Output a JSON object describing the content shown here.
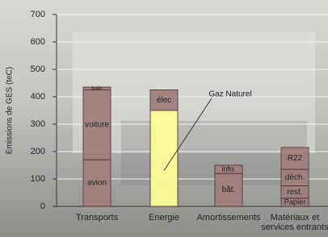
{
  "chart_data": {
    "type": "stacked_bar",
    "y_label": "Emissions de GES (teC)",
    "categories": [
      "Transports",
      "Energie",
      "Amortissements",
      "Matériaux et services entrants"
    ],
    "series": [
      {
        "name": "avion",
        "color": "#a07e7c",
        "values": [
          170,
          null,
          null,
          null
        ]
      },
      {
        "name": "voiture",
        "color": "#a07e7c",
        "values": [
          255,
          null,
          null,
          null
        ]
      },
      {
        "name": "train",
        "color": "#a07e7c",
        "values": [
          10,
          null,
          null,
          null
        ]
      },
      {
        "name": "Gaz Naturel",
        "color": "#ffff99",
        "values": [
          null,
          350,
          null,
          null
        ]
      },
      {
        "name": "élec",
        "color": "#a07e7c",
        "values": [
          null,
          75,
          null,
          null
        ]
      },
      {
        "name": "bât.",
        "color": "#a07e7c",
        "values": [
          null,
          null,
          120,
          null
        ]
      },
      {
        "name": "info.",
        "color": "#a07e7c",
        "values": [
          null,
          null,
          30,
          null
        ]
      },
      {
        "name": "Papier",
        "color": "#a07e7c",
        "values": [
          null,
          null,
          null,
          30
        ]
      },
      {
        "name": "rest.",
        "color": "#a07e7c",
        "values": [
          null,
          null,
          null,
          45
        ]
      },
      {
        "name": "déch.",
        "color": "#a07e7c",
        "values": [
          null,
          null,
          null,
          60
        ]
      },
      {
        "name": "R22",
        "color": "#a07e7c",
        "values": [
          null,
          null,
          null,
          80
        ]
      }
    ],
    "ylim": [
      0,
      700
    ],
    "yticks": [
      0,
      100,
      200,
      300,
      400,
      500,
      600,
      700
    ],
    "grid": true
  }
}
